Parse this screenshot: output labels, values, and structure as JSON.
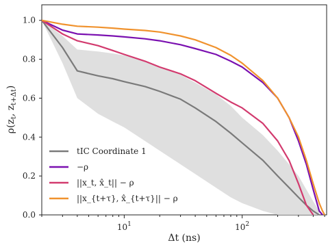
{
  "chart_data": {
    "type": "line",
    "title": "",
    "xlabel": "Δt (ns)",
    "ylabel": "ρ(z_t, z_{t+Δt})",
    "x_scale": "log",
    "xlim": [
      2,
      520
    ],
    "ylim": [
      0.0,
      1.08
    ],
    "grid": false,
    "legend_placement": "lower-left",
    "x_ticks": [
      {
        "value": 10,
        "base": "10",
        "exp": "1"
      },
      {
        "value": 100,
        "base": "10",
        "exp": "2"
      }
    ],
    "y_ticks": [
      {
        "value": 0.0,
        "label": "0.0"
      },
      {
        "value": 0.2,
        "label": "0.2"
      },
      {
        "value": 0.4,
        "label": "0.4"
      },
      {
        "value": 0.6,
        "label": "0.6"
      },
      {
        "value": 0.8,
        "label": "0.8"
      },
      {
        "value": 1.0,
        "label": "1.0"
      }
    ],
    "x": [
      2,
      3,
      4,
      6,
      8,
      10,
      15,
      20,
      30,
      40,
      60,
      80,
      100,
      150,
      200,
      250,
      300,
      350,
      400,
      450,
      480,
      500
    ],
    "series": [
      {
        "name": "tIC Coordinate 1",
        "color": "#7a7a7a",
        "values": [
          1.0,
          0.86,
          0.74,
          0.715,
          0.7,
          0.685,
          0.66,
          0.635,
          0.595,
          0.55,
          0.48,
          0.42,
          0.37,
          0.28,
          0.2,
          0.14,
          0.09,
          0.05,
          0.02,
          0.0,
          null,
          null
        ],
        "band_lower": [
          1.0,
          0.78,
          0.6,
          0.52,
          0.48,
          0.45,
          0.38,
          0.33,
          0.26,
          0.21,
          0.14,
          0.09,
          0.06,
          0.02,
          0.0,
          0.0,
          0.0,
          0.0,
          0.0,
          0.0,
          null,
          null
        ],
        "band_upper": [
          1.0,
          0.92,
          0.85,
          0.84,
          0.83,
          0.82,
          0.79,
          0.76,
          0.72,
          0.68,
          0.62,
          0.56,
          0.5,
          0.41,
          0.33,
          0.26,
          0.2,
          0.13,
          0.07,
          0.02,
          null,
          null
        ]
      },
      {
        "name": "−ρ",
        "color": "#7a10b0",
        "values": [
          1.0,
          0.95,
          0.93,
          0.925,
          0.92,
          0.915,
          0.905,
          0.895,
          0.875,
          0.855,
          0.825,
          0.79,
          0.76,
          0.68,
          0.6,
          0.5,
          0.38,
          0.26,
          0.13,
          0.02,
          0.0,
          null
        ]
      },
      {
        "name": "||x_t, x̂_t|| − ρ",
        "color": "#d23a6e",
        "values": [
          1.0,
          0.93,
          0.895,
          0.87,
          0.845,
          0.825,
          0.79,
          0.76,
          0.725,
          0.69,
          0.625,
          0.58,
          0.55,
          0.47,
          0.38,
          0.28,
          0.16,
          0.05,
          0.0,
          null,
          null,
          null
        ]
      },
      {
        "name": "||x_{t+τ}, x̂_{t+τ}|| − ρ",
        "color": "#f0922d",
        "values": [
          1.0,
          0.98,
          0.97,
          0.965,
          0.96,
          0.955,
          0.948,
          0.94,
          0.92,
          0.9,
          0.86,
          0.82,
          0.78,
          0.69,
          0.6,
          0.5,
          0.4,
          0.28,
          0.16,
          0.06,
          0.02,
          0.0
        ]
      }
    ]
  }
}
